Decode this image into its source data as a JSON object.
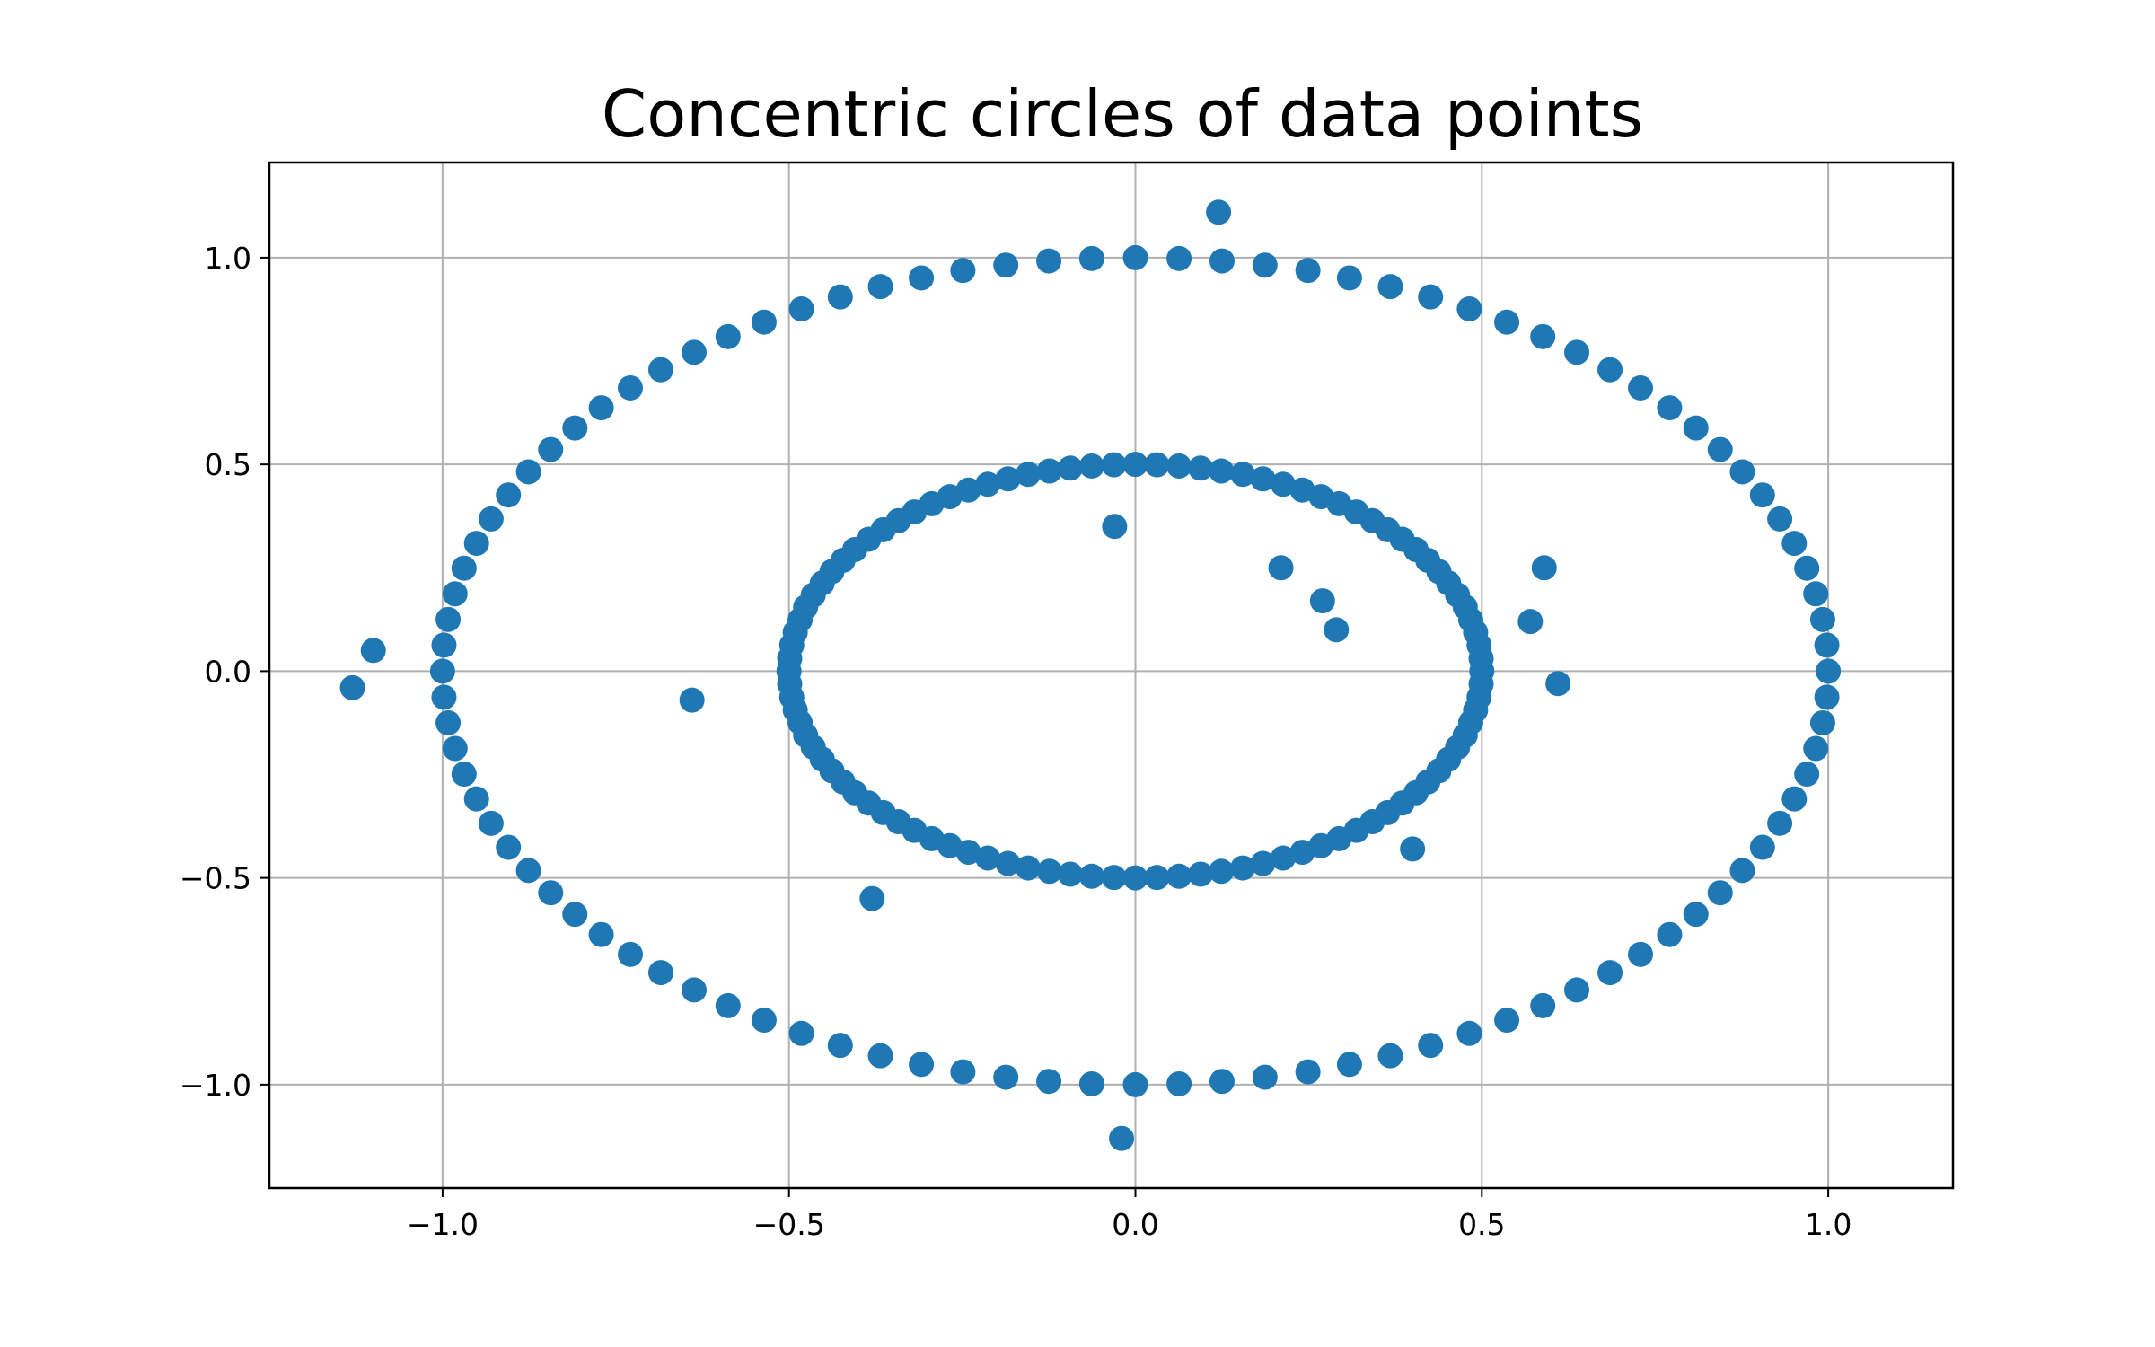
{
  "chart_data": {
    "type": "scatter",
    "title": "Concentric circles of data points",
    "xlabel": "",
    "ylabel": "",
    "xlim": [
      -1.25,
      1.18
    ],
    "ylim": [
      -1.25,
      1.23
    ],
    "grid": true,
    "marker_color": "#1f77b4",
    "x_ticks": [
      {
        "value": -1.0,
        "label": "−1.0"
      },
      {
        "value": -0.5,
        "label": "−0.5"
      },
      {
        "value": 0.0,
        "label": "0.0"
      },
      {
        "value": 0.5,
        "label": "0.5"
      },
      {
        "value": 1.0,
        "label": "1.0"
      }
    ],
    "y_ticks": [
      {
        "value": 1.0,
        "label": "1.0"
      },
      {
        "value": 0.5,
        "label": "0.5"
      },
      {
        "value": 0.0,
        "label": "0.0"
      },
      {
        "value": -0.5,
        "label": "−0.5"
      },
      {
        "value": -1.0,
        "label": "−1.0"
      }
    ],
    "series": [
      {
        "points": [
          [
            1.0,
            0.0
          ],
          [
            0.998,
            0.063
          ],
          [
            0.992,
            0.125
          ],
          [
            0.982,
            0.187
          ],
          [
            0.969,
            0.249
          ],
          [
            0.951,
            0.309
          ],
          [
            0.93,
            0.368
          ],
          [
            0.905,
            0.426
          ],
          [
            0.876,
            0.482
          ],
          [
            0.844,
            0.536
          ],
          [
            0.809,
            0.588
          ],
          [
            0.771,
            0.637
          ],
          [
            0.729,
            0.685
          ],
          [
            0.685,
            0.729
          ],
          [
            0.637,
            0.771
          ],
          [
            0.588,
            0.809
          ],
          [
            0.536,
            0.844
          ],
          [
            0.482,
            0.876
          ],
          [
            0.426,
            0.905
          ],
          [
            0.368,
            0.93
          ],
          [
            0.309,
            0.951
          ],
          [
            0.249,
            0.969
          ],
          [
            0.187,
            0.982
          ],
          [
            0.125,
            0.992
          ],
          [
            0.063,
            0.998
          ],
          [
            0.0,
            1.0
          ],
          [
            -0.063,
            0.998
          ],
          [
            -0.125,
            0.992
          ],
          [
            -0.187,
            0.982
          ],
          [
            -0.249,
            0.969
          ],
          [
            -0.309,
            0.951
          ],
          [
            -0.368,
            0.93
          ],
          [
            -0.426,
            0.905
          ],
          [
            -0.482,
            0.876
          ],
          [
            -0.536,
            0.844
          ],
          [
            -0.588,
            0.809
          ],
          [
            -0.637,
            0.771
          ],
          [
            -0.685,
            0.729
          ],
          [
            -0.729,
            0.685
          ],
          [
            -0.771,
            0.637
          ],
          [
            -0.809,
            0.588
          ],
          [
            -0.844,
            0.536
          ],
          [
            -0.876,
            0.482
          ],
          [
            -0.905,
            0.426
          ],
          [
            -0.93,
            0.368
          ],
          [
            -0.951,
            0.309
          ],
          [
            -0.969,
            0.249
          ],
          [
            -0.982,
            0.187
          ],
          [
            -0.992,
            0.125
          ],
          [
            -0.998,
            0.063
          ],
          [
            -1.0,
            0.0
          ],
          [
            -0.998,
            -0.063
          ],
          [
            -0.992,
            -0.125
          ],
          [
            -0.982,
            -0.187
          ],
          [
            -0.969,
            -0.249
          ],
          [
            -0.951,
            -0.309
          ],
          [
            -0.93,
            -0.368
          ],
          [
            -0.905,
            -0.426
          ],
          [
            -0.876,
            -0.482
          ],
          [
            -0.844,
            -0.536
          ],
          [
            -0.809,
            -0.588
          ],
          [
            -0.771,
            -0.637
          ],
          [
            -0.729,
            -0.685
          ],
          [
            -0.685,
            -0.729
          ],
          [
            -0.637,
            -0.771
          ],
          [
            -0.588,
            -0.809
          ],
          [
            -0.536,
            -0.844
          ],
          [
            -0.482,
            -0.876
          ],
          [
            -0.426,
            -0.905
          ],
          [
            -0.368,
            -0.93
          ],
          [
            -0.309,
            -0.951
          ],
          [
            -0.249,
            -0.969
          ],
          [
            -0.187,
            -0.982
          ],
          [
            -0.125,
            -0.992
          ],
          [
            -0.063,
            -0.998
          ],
          [
            0.0,
            -1.0
          ],
          [
            0.063,
            -0.998
          ],
          [
            0.125,
            -0.992
          ],
          [
            0.187,
            -0.982
          ],
          [
            0.249,
            -0.969
          ],
          [
            0.309,
            -0.951
          ],
          [
            0.368,
            -0.93
          ],
          [
            0.426,
            -0.905
          ],
          [
            0.482,
            -0.876
          ],
          [
            0.536,
            -0.844
          ],
          [
            0.588,
            -0.809
          ],
          [
            0.637,
            -0.771
          ],
          [
            0.685,
            -0.729
          ],
          [
            0.729,
            -0.685
          ],
          [
            0.771,
            -0.637
          ],
          [
            0.809,
            -0.588
          ],
          [
            0.844,
            -0.536
          ],
          [
            0.876,
            -0.482
          ],
          [
            0.905,
            -0.426
          ],
          [
            0.93,
            -0.368
          ],
          [
            0.951,
            -0.309
          ],
          [
            0.969,
            -0.249
          ],
          [
            0.982,
            -0.187
          ],
          [
            0.992,
            -0.125
          ],
          [
            0.998,
            -0.063
          ],
          [
            0.5,
            0.0
          ],
          [
            0.499,
            0.031
          ],
          [
            0.496,
            0.063
          ],
          [
            0.491,
            0.094
          ],
          [
            0.484,
            0.124
          ],
          [
            0.476,
            0.155
          ],
          [
            0.465,
            0.184
          ],
          [
            0.452,
            0.213
          ],
          [
            0.438,
            0.241
          ],
          [
            0.422,
            0.268
          ],
          [
            0.405,
            0.294
          ],
          [
            0.385,
            0.319
          ],
          [
            0.364,
            0.342
          ],
          [
            0.342,
            0.364
          ],
          [
            0.319,
            0.385
          ],
          [
            0.294,
            0.405
          ],
          [
            0.268,
            0.422
          ],
          [
            0.241,
            0.438
          ],
          [
            0.213,
            0.452
          ],
          [
            0.184,
            0.465
          ],
          [
            0.155,
            0.476
          ],
          [
            0.124,
            0.484
          ],
          [
            0.094,
            0.491
          ],
          [
            0.063,
            0.496
          ],
          [
            0.031,
            0.499
          ],
          [
            0.0,
            0.5
          ],
          [
            -0.031,
            0.499
          ],
          [
            -0.063,
            0.496
          ],
          [
            -0.094,
            0.491
          ],
          [
            -0.124,
            0.484
          ],
          [
            -0.155,
            0.476
          ],
          [
            -0.184,
            0.465
          ],
          [
            -0.213,
            0.452
          ],
          [
            -0.241,
            0.438
          ],
          [
            -0.268,
            0.422
          ],
          [
            -0.294,
            0.405
          ],
          [
            -0.319,
            0.385
          ],
          [
            -0.342,
            0.364
          ],
          [
            -0.364,
            0.342
          ],
          [
            -0.385,
            0.319
          ],
          [
            -0.405,
            0.294
          ],
          [
            -0.422,
            0.268
          ],
          [
            -0.438,
            0.241
          ],
          [
            -0.452,
            0.213
          ],
          [
            -0.465,
            0.184
          ],
          [
            -0.476,
            0.155
          ],
          [
            -0.484,
            0.124
          ],
          [
            -0.491,
            0.094
          ],
          [
            -0.496,
            0.063
          ],
          [
            -0.499,
            0.031
          ],
          [
            -0.5,
            0.0
          ],
          [
            -0.499,
            -0.031
          ],
          [
            -0.496,
            -0.063
          ],
          [
            -0.491,
            -0.094
          ],
          [
            -0.484,
            -0.124
          ],
          [
            -0.476,
            -0.155
          ],
          [
            -0.465,
            -0.184
          ],
          [
            -0.452,
            -0.213
          ],
          [
            -0.438,
            -0.241
          ],
          [
            -0.422,
            -0.268
          ],
          [
            -0.405,
            -0.294
          ],
          [
            -0.385,
            -0.319
          ],
          [
            -0.364,
            -0.342
          ],
          [
            -0.342,
            -0.364
          ],
          [
            -0.319,
            -0.385
          ],
          [
            -0.294,
            -0.405
          ],
          [
            -0.268,
            -0.422
          ],
          [
            -0.241,
            -0.438
          ],
          [
            -0.213,
            -0.452
          ],
          [
            -0.184,
            -0.465
          ],
          [
            -0.155,
            -0.476
          ],
          [
            -0.124,
            -0.484
          ],
          [
            -0.094,
            -0.491
          ],
          [
            -0.063,
            -0.496
          ],
          [
            -0.031,
            -0.499
          ],
          [
            0.0,
            -0.5
          ],
          [
            0.031,
            -0.499
          ],
          [
            0.063,
            -0.496
          ],
          [
            0.094,
            -0.491
          ],
          [
            0.124,
            -0.484
          ],
          [
            0.155,
            -0.476
          ],
          [
            0.184,
            -0.465
          ],
          [
            0.213,
            -0.452
          ],
          [
            0.241,
            -0.438
          ],
          [
            0.268,
            -0.422
          ],
          [
            0.294,
            -0.405
          ],
          [
            0.319,
            -0.385
          ],
          [
            0.342,
            -0.364
          ],
          [
            0.364,
            -0.342
          ],
          [
            0.385,
            -0.319
          ],
          [
            0.405,
            -0.294
          ],
          [
            0.422,
            -0.268
          ],
          [
            0.438,
            -0.241
          ],
          [
            0.452,
            -0.213
          ],
          [
            0.465,
            -0.184
          ],
          [
            0.476,
            -0.155
          ],
          [
            0.484,
            -0.124
          ],
          [
            0.491,
            -0.094
          ],
          [
            0.496,
            -0.063
          ],
          [
            0.499,
            -0.031
          ],
          [
            -1.13,
            -0.04
          ],
          [
            -1.1,
            0.05
          ],
          [
            -0.02,
            -1.13
          ],
          [
            0.12,
            1.11
          ],
          [
            0.21,
            0.25
          ],
          [
            0.29,
            0.1
          ],
          [
            -0.64,
            -0.07
          ],
          [
            0.59,
            0.25
          ],
          [
            -0.03,
            0.35
          ],
          [
            0.61,
            -0.03
          ],
          [
            0.57,
            0.12
          ],
          [
            -0.38,
            -0.55
          ],
          [
            0.4,
            -0.43
          ],
          [
            0.27,
            0.17
          ]
        ]
      }
    ]
  }
}
